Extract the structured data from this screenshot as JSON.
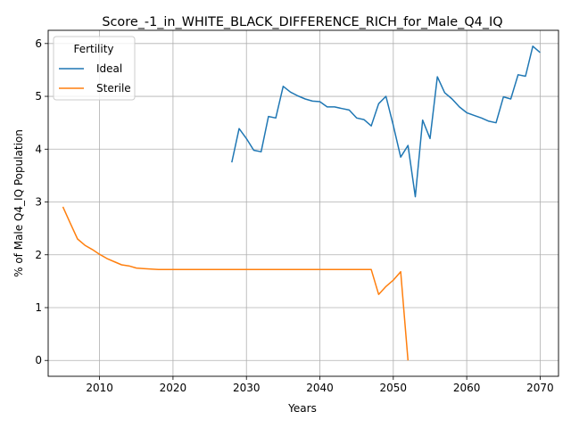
{
  "chart_data": {
    "type": "line",
    "title": "Score_-1_in_WHITE_BLACK_DIFFERENCE_RICH_for_Male_Q4_IQ",
    "xlabel": "Years",
    "ylabel": "% of Male Q4_IQ Population",
    "xlim": [
      2003,
      2072.5
    ],
    "ylim": [
      -0.3,
      6.25
    ],
    "xticks": [
      2010,
      2020,
      2030,
      2040,
      2050,
      2060,
      2070
    ],
    "yticks": [
      0,
      1,
      2,
      3,
      4,
      5,
      6
    ],
    "grid": true,
    "legend": {
      "title": "Fertility",
      "position": "top-left"
    },
    "series": [
      {
        "name": "Ideal",
        "color": "#1f77b4",
        "x": [
          2028,
          2029,
          2030,
          2031,
          2032,
          2033,
          2034,
          2035,
          2036,
          2037,
          2038,
          2039,
          2040,
          2041,
          2042,
          2043,
          2044,
          2045,
          2046,
          2047,
          2048,
          2049,
          2050,
          2051,
          2052,
          2053,
          2054,
          2055,
          2056,
          2057,
          2058,
          2059,
          2060,
          2061,
          2062,
          2063,
          2064,
          2065,
          2066,
          2067,
          2068,
          2069,
          2070
        ],
        "y": [
          3.75,
          4.39,
          4.2,
          3.98,
          3.95,
          4.62,
          4.59,
          5.19,
          5.08,
          5.01,
          4.95,
          4.91,
          4.9,
          4.8,
          4.8,
          4.77,
          4.74,
          4.59,
          4.56,
          4.44,
          4.86,
          5.0,
          4.45,
          3.85,
          4.07,
          3.1,
          4.55,
          4.2,
          5.37,
          5.07,
          4.95,
          4.8,
          4.69,
          4.64,
          4.59,
          4.53,
          4.5,
          4.99,
          4.95,
          5.41,
          5.38,
          5.95,
          5.83
        ]
      },
      {
        "name": "Sterile",
        "color": "#ff7f0e",
        "x": [
          2005,
          2006,
          2007,
          2008,
          2009,
          2010,
          2011,
          2012,
          2013,
          2014,
          2015,
          2016,
          2017,
          2018,
          2019,
          2020,
          2025,
          2030,
          2035,
          2040,
          2045,
          2046,
          2047,
          2048,
          2049,
          2050,
          2051,
          2052
        ],
        "y": [
          2.91,
          2.6,
          2.3,
          2.18,
          2.1,
          2.01,
          1.93,
          1.87,
          1.81,
          1.79,
          1.75,
          1.74,
          1.73,
          1.72,
          1.72,
          1.72,
          1.72,
          1.72,
          1.72,
          1.72,
          1.72,
          1.72,
          1.72,
          1.25,
          1.4,
          1.52,
          1.68,
          0.0
        ]
      }
    ]
  }
}
